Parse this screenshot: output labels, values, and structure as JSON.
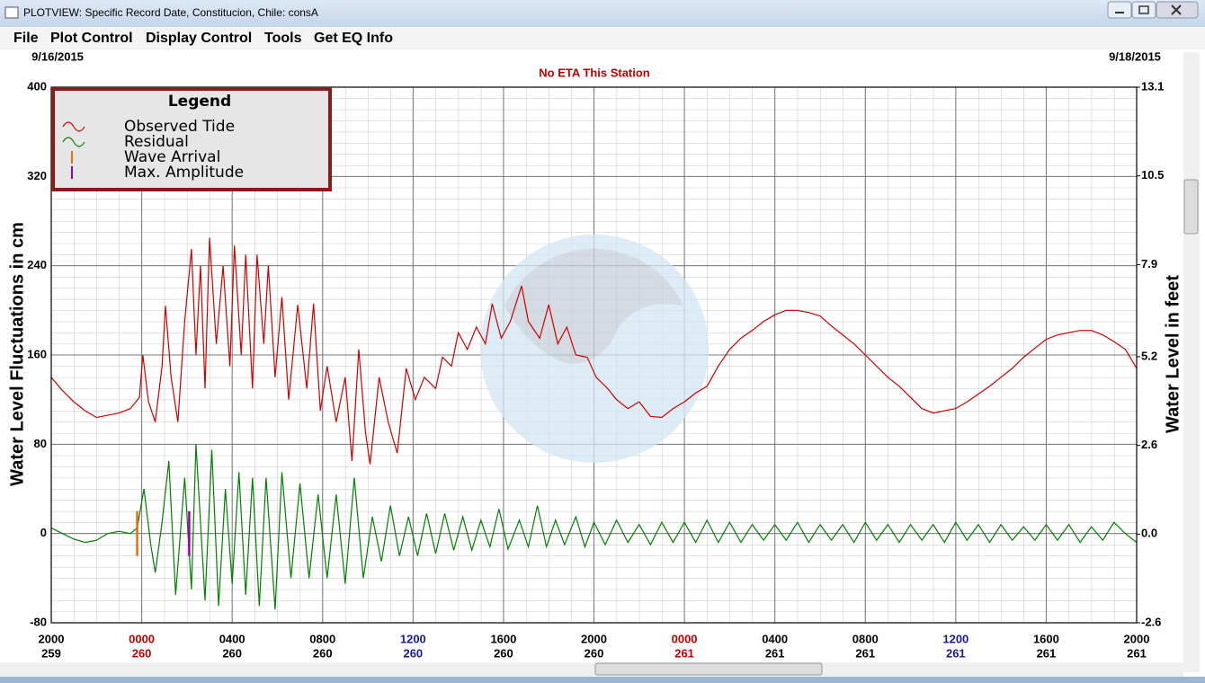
{
  "window": {
    "title": "PLOTVIEW: Specific Record Date, Constitucion, Chile: consA",
    "menu": [
      "File",
      "Plot Control",
      "Display Control",
      "Tools",
      "Get EQ Info"
    ]
  },
  "chart_data": {
    "type": "line",
    "subtitle": "No ETA This Station",
    "start_date": "9/16/2015",
    "end_date": "9/18/2015",
    "ylabel": "Water Level Fluctuations in cm",
    "y2label": "Water Level in feet",
    "legend_title": "Legend",
    "xlim": [
      0,
      48
    ],
    "xticks": [
      {
        "value": 0,
        "label": "2000"
      },
      {
        "value": 4,
        "label": "0000"
      },
      {
        "value": 8,
        "label": "0400"
      },
      {
        "value": 12,
        "label": "0800"
      },
      {
        "value": 16,
        "label": "1200"
      },
      {
        "value": 20,
        "label": "1600"
      },
      {
        "value": 24,
        "label": "2000"
      },
      {
        "value": 28,
        "label": "0000"
      },
      {
        "value": 32,
        "label": "0400"
      },
      {
        "value": 36,
        "label": "0800"
      },
      {
        "value": 40,
        "label": "1200"
      },
      {
        "value": 44,
        "label": "1600"
      },
      {
        "value": 48,
        "label": "2000"
      }
    ],
    "xtick_days": [
      "259",
      "260",
      "260",
      "260",
      "260",
      "260",
      "260",
      "261",
      "261",
      "261",
      "261",
      "261",
      "261"
    ],
    "xtick_colors": [
      "#000000",
      "#c00000",
      "#000000",
      "#000000",
      "#1a1a99",
      "#000000",
      "#000000",
      "#c00000",
      "#000000",
      "#000000",
      "#1a1a99",
      "#000000",
      "#000000"
    ],
    "ylim": [
      -80,
      400
    ],
    "yticks": [
      -80,
      0,
      80,
      160,
      240,
      320,
      400
    ],
    "y2lim": [
      -2.6,
      13.1
    ],
    "y2ticks": [
      -2.6,
      {
        "value": 0,
        "label": "0.0"
      },
      2.6,
      5.2,
      7.9,
      10.5,
      13.1
    ],
    "grid": true,
    "series": [
      {
        "name": "Observed Tide",
        "color": "#cc0000",
        "x": [
          0,
          0.5,
          1,
          1.5,
          2,
          2.5,
          3,
          3.5,
          3.9,
          4.05,
          4.3,
          4.6,
          4.9,
          5.05,
          5.3,
          5.6,
          5.9,
          6.2,
          6.4,
          6.6,
          6.8,
          7,
          7.3,
          7.6,
          7.9,
          8.1,
          8.4,
          8.6,
          8.9,
          9.1,
          9.4,
          9.6,
          9.9,
          10.2,
          10.5,
          10.9,
          11.3,
          11.6,
          11.9,
          12.2,
          12.6,
          13,
          13.3,
          13.6,
          13.9,
          14.1,
          14.5,
          14.9,
          15.3,
          15.7,
          16.1,
          16.5,
          17,
          17.3,
          17.7,
          18,
          18.4,
          18.8,
          19.2,
          19.5,
          19.9,
          20.3,
          20.8,
          21.1,
          21.6,
          22,
          22.4,
          22.8,
          23.2,
          23.7,
          24.1,
          24.6,
          25,
          25.5,
          26,
          26.5,
          27,
          27.5,
          28,
          28.5,
          29,
          29.5,
          30,
          30.5,
          31,
          31.5,
          32,
          32.5,
          33,
          33.5,
          34,
          34.5,
          35,
          35.5,
          36,
          36.5,
          37,
          37.5,
          38,
          38.5,
          39,
          39.5,
          40,
          40.5,
          41,
          41.5,
          42,
          42.5,
          43,
          43.5,
          44,
          44.5,
          45,
          45.5,
          46,
          46.5,
          47,
          47.5,
          48
        ],
        "values": [
          140,
          128,
          118,
          110,
          104,
          106,
          108,
          112,
          122,
          160,
          118,
          100,
          150,
          204,
          140,
          100,
          190,
          255,
          160,
          240,
          130,
          265,
          170,
          240,
          150,
          258,
          160,
          250,
          130,
          250,
          170,
          240,
          140,
          212,
          120,
          205,
          130,
          206,
          110,
          150,
          100,
          140,
          65,
          165,
          90,
          62,
          140,
          100,
          72,
          148,
          120,
          140,
          130,
          158,
          150,
          180,
          165,
          185,
          170,
          206,
          175,
          190,
          222,
          190,
          175,
          205,
          170,
          185,
          160,
          158,
          140,
          130,
          120,
          112,
          118,
          105,
          104,
          112,
          118,
          126,
          132,
          150,
          165,
          175,
          182,
          190,
          196,
          200,
          200,
          198,
          195,
          186,
          178,
          170,
          160,
          150,
          140,
          132,
          122,
          112,
          108,
          110,
          112,
          118,
          125,
          132,
          140,
          148,
          158,
          166,
          174,
          178,
          180,
          182,
          182,
          178,
          172,
          165,
          148
        ]
      },
      {
        "name": "Residual",
        "color": "#008000",
        "x": [
          0,
          0.5,
          1,
          1.5,
          2,
          2.5,
          3,
          3.5,
          3.8,
          4.1,
          4.4,
          4.6,
          4.9,
          5.2,
          5.5,
          5.9,
          6.2,
          6.4,
          6.8,
          7.1,
          7.4,
          7.7,
          8,
          8.3,
          8.6,
          8.9,
          9.2,
          9.5,
          9.9,
          10.2,
          10.6,
          11,
          11.4,
          11.8,
          12.2,
          12.6,
          13,
          13.4,
          13.8,
          14.2,
          14.6,
          15,
          15.4,
          15.8,
          16.2,
          16.6,
          17,
          17.4,
          17.8,
          18.2,
          18.6,
          19,
          19.4,
          19.8,
          20.2,
          20.7,
          21.1,
          21.5,
          21.9,
          22.3,
          22.7,
          23.2,
          23.6,
          24,
          24.5,
          25,
          25.5,
          26,
          26.5,
          27,
          27.5,
          28,
          28.5,
          29,
          29.5,
          30,
          30.5,
          31,
          31.5,
          32,
          32.5,
          33,
          33.5,
          34,
          34.5,
          35,
          35.5,
          36,
          36.5,
          37,
          37.5,
          38,
          38.5,
          39,
          39.5,
          40,
          40.5,
          41,
          41.5,
          42,
          42.5,
          43,
          43.5,
          44,
          44.5,
          45,
          45.5,
          46,
          46.5,
          47,
          47.5,
          48
        ],
        "values": [
          5,
          0,
          -5,
          -8,
          -6,
          0,
          2,
          0,
          5,
          40,
          -10,
          -35,
          10,
          65,
          -55,
          50,
          -50,
          80,
          -60,
          75,
          -65,
          40,
          -45,
          55,
          -55,
          50,
          -65,
          50,
          -68,
          55,
          -40,
          45,
          -40,
          35,
          -40,
          35,
          -45,
          50,
          -40,
          15,
          -25,
          25,
          -20,
          15,
          -20,
          18,
          -18,
          18,
          -15,
          15,
          -15,
          12,
          -12,
          22,
          -14,
          12,
          -12,
          25,
          -12,
          12,
          -10,
          15,
          -12,
          10,
          -10,
          12,
          -8,
          8,
          -10,
          10,
          -8,
          10,
          -8,
          12,
          -8,
          10,
          -8,
          8,
          -6,
          8,
          -6,
          10,
          -8,
          8,
          -6,
          8,
          -8,
          10,
          -6,
          8,
          -8,
          8,
          -6,
          8,
          -8,
          10,
          -6,
          8,
          -8,
          8,
          -6,
          6,
          -6,
          8,
          -6,
          8,
          -8,
          6,
          -6,
          10,
          0,
          -8
        ]
      }
    ],
    "markers": [
      {
        "name": "Wave Arrival",
        "color": "#e07000",
        "x": 3.8,
        "span": [
          -20,
          20
        ]
      },
      {
        "name": "Max. Amplitude",
        "color": "#9900aa",
        "x": 6.1,
        "span": [
          -20,
          20
        ]
      }
    ]
  }
}
